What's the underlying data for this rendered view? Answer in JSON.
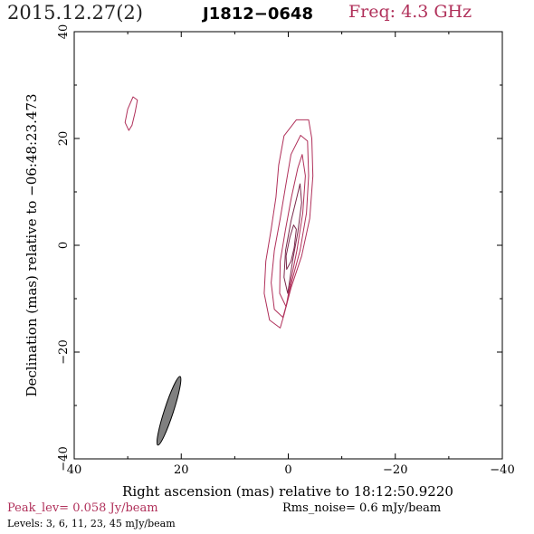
{
  "header": {
    "date": "2015.12.27(2)",
    "source": "J1812−0648",
    "frequency": "Freq: 4.3 GHz"
  },
  "chart_data": {
    "type": "contour",
    "xlabel": "Right ascension (mas) relative to 18:12:50.9220",
    "ylabel": "Declination (mas) relative to −06:48:23.473",
    "xlim": [
      40,
      -40
    ],
    "ylim": [
      -40,
      40
    ],
    "xticks": [
      40,
      20,
      0,
      -20,
      -40
    ],
    "yticks": [
      -40,
      -20,
      0,
      20,
      40
    ],
    "xtick_labels": [
      "40",
      "20",
      "0",
      "−20",
      "−40"
    ],
    "ytick_labels": [
      "−40",
      "−20",
      "0",
      "20",
      "40"
    ],
    "contour_levels_mJy_per_beam": [
      3,
      6,
      11,
      23,
      45
    ],
    "contours": [
      {
        "level": 3,
        "points": [
          [
            1.5,
            -15.5
          ],
          [
            3.5,
            -14.0
          ],
          [
            4.5,
            -9.0
          ],
          [
            4.2,
            -3.0
          ],
          [
            3.2,
            3.0
          ],
          [
            2.3,
            9.0
          ],
          [
            1.8,
            15.0
          ],
          [
            0.8,
            20.5
          ],
          [
            -1.5,
            23.5
          ],
          [
            -3.8,
            23.5
          ],
          [
            -4.4,
            20.0
          ],
          [
            -4.6,
            13.0
          ],
          [
            -4.0,
            5.0
          ],
          [
            -2.5,
            -2.0
          ],
          [
            -0.5,
            -8.0
          ],
          [
            0.8,
            -13.0
          ]
        ]
      },
      {
        "level": 3,
        "points": [
          [
            29.8,
            21.5
          ],
          [
            30.5,
            23.0
          ],
          [
            30.0,
            25.5
          ],
          [
            29.0,
            27.8
          ],
          [
            28.2,
            27.2
          ],
          [
            28.6,
            25.0
          ],
          [
            29.2,
            22.5
          ]
        ]
      },
      {
        "level": 6,
        "points": [
          [
            1.0,
            -13.5
          ],
          [
            2.6,
            -12.0
          ],
          [
            3.2,
            -7.0
          ],
          [
            2.6,
            -1.0
          ],
          [
            1.5,
            5.0
          ],
          [
            0.5,
            11.0
          ],
          [
            -0.5,
            17.0
          ],
          [
            -2.3,
            20.6
          ],
          [
            -3.6,
            19.5
          ],
          [
            -3.8,
            13.0
          ],
          [
            -3.4,
            6.0
          ],
          [
            -2.2,
            -1.0
          ],
          [
            -0.6,
            -7.0
          ],
          [
            0.3,
            -11.0
          ]
        ]
      },
      {
        "level": 11,
        "points": [
          [
            0.4,
            -11.5
          ],
          [
            1.6,
            -9.0
          ],
          [
            1.5,
            -3.0
          ],
          [
            0.5,
            3.0
          ],
          [
            -0.6,
            9.0
          ],
          [
            -1.8,
            14.5
          ],
          [
            -2.6,
            17.0
          ],
          [
            -3.2,
            13.0
          ],
          [
            -2.7,
            6.0
          ],
          [
            -1.6,
            -1.0
          ],
          [
            -0.4,
            -7.0
          ]
        ]
      },
      {
        "level": 23,
        "points": [
          [
            0.1,
            -9.0
          ],
          [
            0.8,
            -6.0
          ],
          [
            0.5,
            -1.0
          ],
          [
            -0.5,
            4.5
          ],
          [
            -1.6,
            9.0
          ],
          [
            -2.2,
            11.5
          ],
          [
            -2.5,
            8.0
          ],
          [
            -1.8,
            2.5
          ],
          [
            -0.8,
            -3.0
          ],
          [
            -0.2,
            -7.0
          ]
        ]
      },
      {
        "level": 45,
        "points": [
          [
            0.3,
            -4.5
          ],
          [
            0.4,
            -2.0
          ],
          [
            -0.3,
            1.5
          ],
          [
            -1.0,
            3.8
          ],
          [
            -1.5,
            3.0
          ],
          [
            -1.1,
            -0.5
          ],
          [
            -0.5,
            -3.0
          ]
        ]
      }
    ],
    "beam": {
      "center": [
        22.3,
        -31.0
      ],
      "major_axis": 13.5,
      "minor_axis": 1.7,
      "position_angle_deg": 18
    },
    "footer": {
      "peak": "Peak_lev=  0.058 Jy/beam",
      "rms": "Rms_noise=   0.6 mJy/beam",
      "levels": "Levels:   3,   6,  11,  23,  45  mJy/beam"
    },
    "colors": {
      "contour_outer": "#b0305a",
      "contour_inner": "#7a2a4c",
      "beam_fill": "#808080",
      "accent": "#b0305a"
    }
  }
}
